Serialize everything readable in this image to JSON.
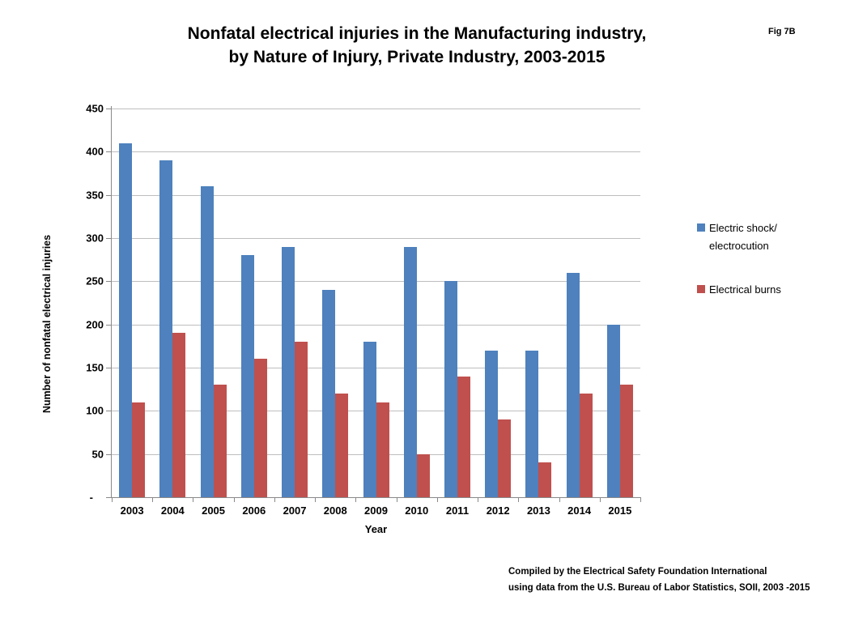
{
  "figure_label": "Fig 7B",
  "title_line1": "Nonfatal electrical injuries in the Manufacturing industry,",
  "title_line2": "by Nature of Injury, Private Industry, 2003-2015",
  "footer_line1": "Compiled by the Electrical Safety Foundation International",
  "footer_line2": "using data from the U.S. Bureau of Labor Statistics, SOII, 2003 -2015",
  "chart_data": {
    "type": "bar",
    "title": "Nonfatal electrical injuries in the Manufacturing industry, by Nature of Injury, Private Industry, 2003-2015",
    "categories": [
      "2003",
      "2004",
      "2005",
      "2006",
      "2007",
      "2008",
      "2009",
      "2010",
      "2011",
      "2012",
      "2013",
      "2014",
      "2015"
    ],
    "series": [
      {
        "name": "Electric shock/electrocution",
        "legend_lines": [
          "Electric shock/",
          "electrocution"
        ],
        "color": "#4e81bd",
        "values": [
          410,
          390,
          360,
          280,
          290,
          240,
          180,
          290,
          250,
          170,
          170,
          260,
          200
        ]
      },
      {
        "name": "Electrical burns",
        "legend_lines": [
          "Electrical burns"
        ],
        "color": "#c0504d",
        "values": [
          110,
          190,
          130,
          160,
          180,
          120,
          110,
          50,
          140,
          90,
          40,
          120,
          130
        ]
      }
    ],
    "xlabel": "Year",
    "ylabel": "Number of nonfatal electrical injuries",
    "ylim": [
      0,
      450
    ],
    "ytick_step": 50,
    "zero_label": "-",
    "grid": true,
    "legend_position": "right"
  },
  "colors": {
    "series1": "#4e81bd",
    "series2": "#c0504d",
    "gridline": "#bebebe",
    "axis": "#898989"
  }
}
